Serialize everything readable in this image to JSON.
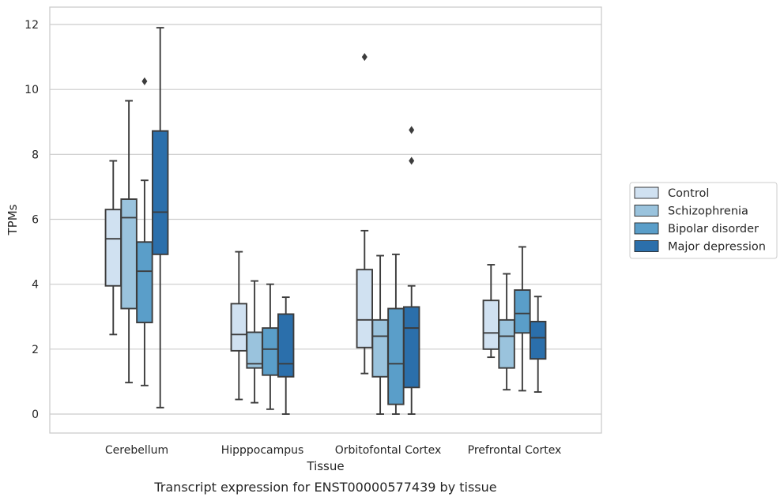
{
  "chart_data": {
    "type": "boxplot",
    "title": "",
    "caption": "Transcript expression for ENST00000577439 by tissue",
    "xlabel": "Tissue",
    "ylabel": "TPMs",
    "ylim": [
      -0.6,
      12.5
    ],
    "yticks": [
      0,
      2,
      4,
      6,
      8,
      10,
      12
    ],
    "grid": true,
    "legend_position": "right",
    "categories": [
      "Cerebellum",
      "Hipppocampus",
      "Orbitofontal Cortex",
      "Prefrontal Cortex"
    ],
    "series": [
      {
        "name": "Control",
        "color": "#d0e1f1",
        "boxes": [
          {
            "whislo": 2.45,
            "q1": 3.95,
            "med": 5.4,
            "q3": 6.3,
            "whishi": 7.8,
            "fliers": []
          },
          {
            "whislo": 0.45,
            "q1": 1.95,
            "med": 2.45,
            "q3": 3.4,
            "whishi": 5.0,
            "fliers": []
          },
          {
            "whislo": 1.25,
            "q1": 2.05,
            "med": 2.9,
            "q3": 4.45,
            "whishi": 5.65,
            "fliers": [
              11.0
            ]
          },
          {
            "whislo": 1.75,
            "q1": 2.0,
            "med": 2.5,
            "q3": 3.5,
            "whishi": 4.6,
            "fliers": []
          }
        ]
      },
      {
        "name": "Schizophrenia",
        "color": "#9ac3dd",
        "boxes": [
          {
            "whislo": 0.97,
            "q1": 3.25,
            "med": 6.05,
            "q3": 6.62,
            "whishi": 9.65,
            "fliers": []
          },
          {
            "whislo": 0.35,
            "q1": 1.42,
            "med": 1.55,
            "q3": 2.52,
            "whishi": 4.1,
            "fliers": []
          },
          {
            "whislo": 0.0,
            "q1": 1.15,
            "med": 2.4,
            "q3": 2.9,
            "whishi": 4.88,
            "fliers": []
          },
          {
            "whislo": 0.75,
            "q1": 1.42,
            "med": 2.4,
            "q3": 2.9,
            "whishi": 4.32,
            "fliers": []
          }
        ]
      },
      {
        "name": "Bipolar disorder",
        "color": "#5a9ec9",
        "boxes": [
          {
            "whislo": 0.88,
            "q1": 2.82,
            "med": 4.4,
            "q3": 5.3,
            "whishi": 7.2,
            "fliers": [
              10.25
            ]
          },
          {
            "whislo": 0.15,
            "q1": 1.2,
            "med": 2.0,
            "q3": 2.65,
            "whishi": 4.0,
            "fliers": []
          },
          {
            "whislo": 0.0,
            "q1": 0.3,
            "med": 1.55,
            "q3": 3.25,
            "whishi": 4.92,
            "fliers": []
          },
          {
            "whislo": 0.72,
            "q1": 2.5,
            "med": 3.1,
            "q3": 3.82,
            "whishi": 5.15,
            "fliers": []
          }
        ]
      },
      {
        "name": "Major depression",
        "color": "#2b6fab",
        "boxes": [
          {
            "whislo": 0.2,
            "q1": 4.92,
            "med": 6.22,
            "q3": 8.72,
            "whishi": 11.9,
            "fliers": []
          },
          {
            "whislo": 0.0,
            "q1": 1.15,
            "med": 1.55,
            "q3": 3.08,
            "whishi": 3.6,
            "fliers": []
          },
          {
            "whislo": 0.0,
            "q1": 0.82,
            "med": 2.65,
            "q3": 3.3,
            "whishi": 3.95,
            "fliers": [
              8.75,
              7.8
            ]
          },
          {
            "whislo": 0.68,
            "q1": 1.7,
            "med": 2.35,
            "q3": 2.85,
            "whishi": 3.62,
            "fliers": []
          }
        ]
      }
    ]
  }
}
